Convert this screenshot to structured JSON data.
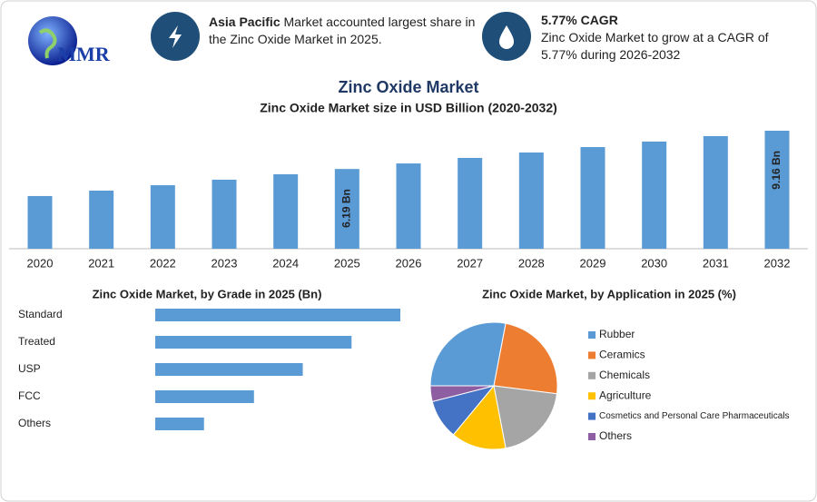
{
  "header": {
    "logo": "MMR",
    "fact1": {
      "bold": "Asia Pacific",
      "text": "Market accounted largest share in the Zinc Oxide Market in 2025."
    },
    "fact2": {
      "title": "5.77% CAGR",
      "text": "Zinc Oxide Market to grow at a CAGR of 5.77% during 2026-2032"
    }
  },
  "title": "Zinc Oxide Market",
  "chart_data": [
    {
      "type": "bar",
      "title": "Zinc Oxide Market size in USD Billion (2020-2032)",
      "categories": [
        "2020",
        "2021",
        "2022",
        "2023",
        "2024",
        "2025",
        "2026",
        "2027",
        "2028",
        "2029",
        "2030",
        "2031",
        "2032"
      ],
      "values": [
        4.09,
        4.51,
        4.93,
        5.36,
        5.78,
        6.19,
        6.62,
        7.05,
        7.47,
        7.89,
        8.32,
        8.74,
        9.16
      ],
      "value_labels": [
        null,
        null,
        null,
        null,
        null,
        "6.19 Bn",
        null,
        null,
        null,
        null,
        null,
        null,
        "9.16 Bn"
      ],
      "color": "#5b9bd5"
    },
    {
      "type": "hbar",
      "title": "Zinc Oxide Market, by Grade in 2025 (Bn)",
      "categories": [
        "Standard",
        "Treated",
        "USP",
        "FCC",
        "Others"
      ],
      "values": [
        2.06,
        1.65,
        1.24,
        0.83,
        0.41
      ],
      "color": "#5b9bd5"
    },
    {
      "type": "pie",
      "title": "Zinc Oxide Market, by Application in 2025 (%)",
      "categories": [
        "Rubber",
        "Ceramics",
        "Chemicals",
        "Agriculture",
        "Cosmetics and Personal Care Pharmaceuticals",
        "Others"
      ],
      "values": [
        28,
        24,
        20,
        14,
        10,
        4
      ],
      "colors": [
        "#5b9bd5",
        "#ed7d31",
        "#a5a5a5",
        "#ffc000",
        "#4472c4",
        "#8e5ea2"
      ]
    }
  ]
}
